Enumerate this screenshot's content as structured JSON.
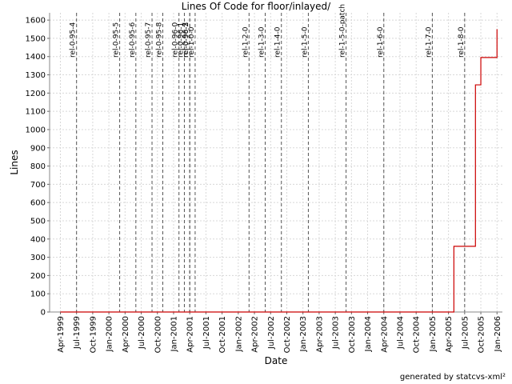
{
  "chart_data": {
    "type": "line",
    "title": "Lines Of Code for floor/inlayed/",
    "x_label": "Date",
    "y_label": "Lines",
    "footer": "generated by statcvs-xml²",
    "grid": true,
    "xlim": [
      "1999-02",
      "2006-02"
    ],
    "ylim": [
      0,
      1640
    ],
    "yticks": [
      0,
      100,
      200,
      300,
      400,
      500,
      600,
      700,
      800,
      900,
      1000,
      1100,
      1200,
      1300,
      1400,
      1500,
      1600
    ],
    "xticks": [
      {
        "value": "1999-04",
        "label": "Apr-1999"
      },
      {
        "value": "1999-07",
        "label": "Jul-1999"
      },
      {
        "value": "1999-10",
        "label": "Oct-1999"
      },
      {
        "value": "2000-01",
        "label": "Jan-2000"
      },
      {
        "value": "2000-04",
        "label": "Apr-2000"
      },
      {
        "value": "2000-07",
        "label": "Jul-2000"
      },
      {
        "value": "2000-10",
        "label": "Oct-2000"
      },
      {
        "value": "2001-01",
        "label": "Jan-2001"
      },
      {
        "value": "2001-04",
        "label": "Apr-2001"
      },
      {
        "value": "2001-07",
        "label": "Jul-2001"
      },
      {
        "value": "2001-10",
        "label": "Oct-2001"
      },
      {
        "value": "2002-01",
        "label": "Jan-2002"
      },
      {
        "value": "2002-04",
        "label": "Apr-2002"
      },
      {
        "value": "2002-07",
        "label": "Jul-2002"
      },
      {
        "value": "2002-10",
        "label": "Oct-2002"
      },
      {
        "value": "2003-01",
        "label": "Jan-2003"
      },
      {
        "value": "2003-04",
        "label": "Apr-2003"
      },
      {
        "value": "2003-07",
        "label": "Jul-2003"
      },
      {
        "value": "2003-10",
        "label": "Oct-2003"
      },
      {
        "value": "2004-01",
        "label": "Jan-2004"
      },
      {
        "value": "2004-04",
        "label": "Apr-2004"
      },
      {
        "value": "2004-07",
        "label": "Jul-2004"
      },
      {
        "value": "2004-10",
        "label": "Oct-2004"
      },
      {
        "value": "2005-01",
        "label": "Jan-2005"
      },
      {
        "value": "2005-04",
        "label": "Apr-2005"
      },
      {
        "value": "2005-07",
        "label": "Jul-2005"
      },
      {
        "value": "2005-10",
        "label": "Oct-2005"
      },
      {
        "value": "2006-01",
        "label": "Jan-2006"
      }
    ],
    "series": [
      {
        "color": "#cc0000",
        "x": [
          "1999-04",
          "2005-05",
          "2005-05",
          "2005-09",
          "2005-09",
          "2005-10",
          "2005-10",
          "2006-01",
          "2006-01"
        ],
        "values": [
          0,
          0,
          360,
          360,
          1245,
          1245,
          1395,
          1395,
          1550
        ]
      }
    ],
    "markers": [
      {
        "label": "rel-0-95-4",
        "x": "1999-07"
      },
      {
        "label": "rel-0-95-5",
        "x": "2000-03"
      },
      {
        "label": "rel-0-95-6",
        "x": "2000-06"
      },
      {
        "label": "rel-0-95-7",
        "x": "2000-09"
      },
      {
        "label": "rel-0-95-8",
        "x": "2000-11"
      },
      {
        "label": "rel-0-96-0",
        "x": "2001-02"
      },
      {
        "label": "rel-0-96-1",
        "x": "2001-03"
      },
      {
        "label": "rel-0-96-2",
        "x": "2001-04"
      },
      {
        "label": "rel-0-96-3",
        "x": "2001-04"
      },
      {
        "label": "rel-1-0-0",
        "x": "2001-05"
      },
      {
        "label": "rel-1-2-0",
        "x": "2002-03"
      },
      {
        "label": "rel-1-3-0",
        "x": "2002-06"
      },
      {
        "label": "rel-1-4-0",
        "x": "2002-09"
      },
      {
        "label": "rel-1-5-0",
        "x": "2003-02"
      },
      {
        "label": "rel-1-5-0-patch",
        "x": "2003-09"
      },
      {
        "label": "rel-1-6-0",
        "x": "2004-04"
      },
      {
        "label": "rel-1-7-0",
        "x": "2005-01"
      },
      {
        "label": "rel-1-8-0",
        "x": "2005-07"
      }
    ]
  }
}
